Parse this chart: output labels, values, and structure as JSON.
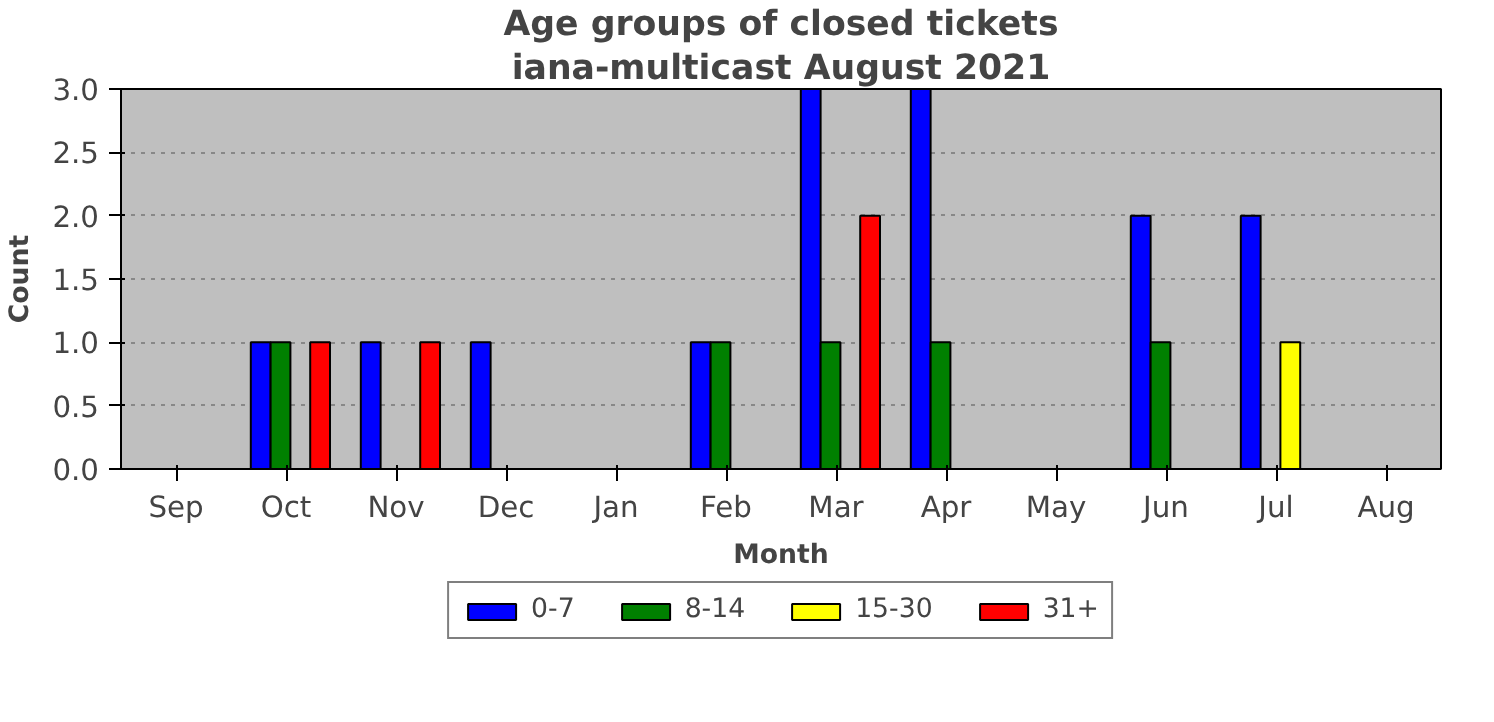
{
  "chart_data": {
    "type": "bar",
    "title": "Age groups of closed tickets",
    "subtitle": "iana-multicast August 2021",
    "xlabel": "Month",
    "ylabel": "Count",
    "categories": [
      "Sep",
      "Oct",
      "Nov",
      "Dec",
      "Jan",
      "Feb",
      "Mar",
      "Apr",
      "May",
      "Jun",
      "Jul",
      "Aug"
    ],
    "series": [
      {
        "name": "0-7",
        "color": "#0000ff",
        "values": [
          0,
          1,
          1,
          1,
          0,
          1,
          3,
          3,
          0,
          2,
          2,
          0
        ]
      },
      {
        "name": "8-14",
        "color": "#008000",
        "values": [
          0,
          1,
          0,
          0,
          0,
          1,
          1,
          1,
          0,
          1,
          0,
          0
        ]
      },
      {
        "name": "15-30",
        "color": "#ffff00",
        "values": [
          0,
          0,
          0,
          0,
          0,
          0,
          0,
          0,
          0,
          0,
          1,
          0
        ]
      },
      {
        "name": "31+",
        "color": "#ff0000",
        "values": [
          0,
          1,
          1,
          0,
          0,
          0,
          2,
          0,
          0,
          0,
          0,
          0
        ]
      }
    ],
    "ylim": [
      0,
      3
    ],
    "yticks": [
      {
        "value": 0,
        "label": "0.0"
      },
      {
        "value": 0.5,
        "label": "0.5"
      },
      {
        "value": 1,
        "label": "1.0"
      },
      {
        "value": 1.5,
        "label": "1.5"
      },
      {
        "value": 2,
        "label": "2.0"
      },
      {
        "value": 2.5,
        "label": "2.5"
      },
      {
        "value": 3,
        "label": "3.0"
      }
    ],
    "grid": "y",
    "legend": "bottom"
  }
}
